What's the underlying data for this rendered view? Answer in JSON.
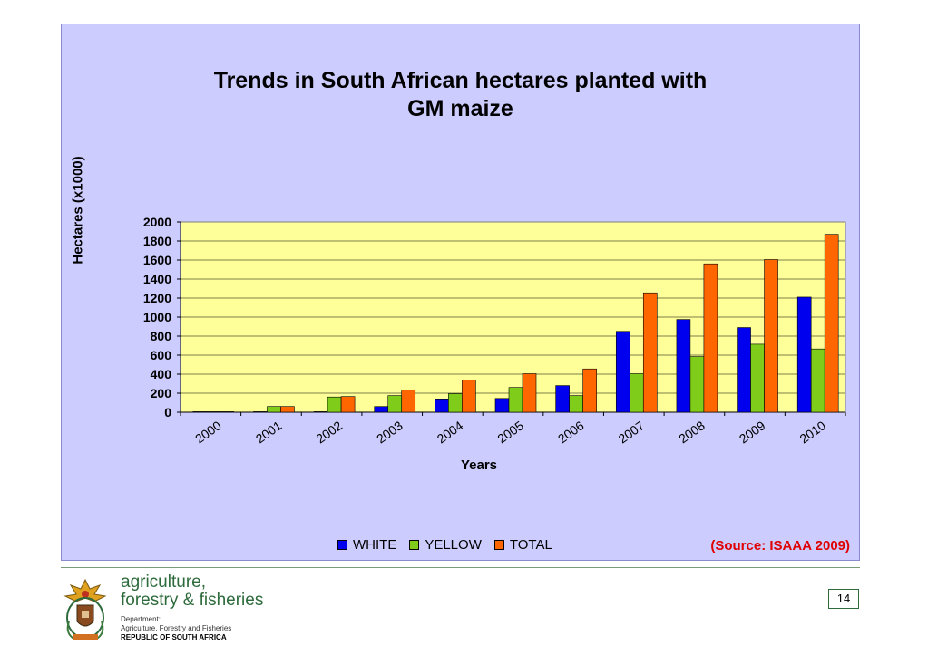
{
  "colors": {
    "panel_bg": "#ccccff",
    "plot_bg": "#ffff99",
    "white_series": "#0000ee",
    "yellow_series": "#80cc1a",
    "total_series": "#ff6600",
    "source_text": "#e00000",
    "brand_green": "#2e6b3c"
  },
  "chart_data": {
    "type": "bar",
    "title": "Trends in South African hectares planted with GM maize",
    "xlabel": "Years",
    "ylabel": "Hectares (x1000)",
    "categories": [
      "2000",
      "2001",
      "2002",
      "2003",
      "2004",
      "2005",
      "2006",
      "2007",
      "2008",
      "2009",
      "2010"
    ],
    "series": [
      {
        "name": "WHITE",
        "values": [
          0,
          0,
          5,
          60,
          140,
          145,
          280,
          850,
          975,
          890,
          1210
        ]
      },
      {
        "name": "YELLOW",
        "values": [
          0,
          60,
          160,
          175,
          195,
          260,
          175,
          405,
          585,
          715,
          665
        ]
      },
      {
        "name": "TOTAL",
        "values": [
          0,
          60,
          165,
          235,
          340,
          405,
          455,
          1255,
          1560,
          1605,
          1870
        ]
      }
    ],
    "ylim": [
      0,
      2000
    ],
    "yticks": [
      0,
      200,
      400,
      600,
      800,
      1000,
      1200,
      1400,
      1600,
      1800,
      2000
    ],
    "grid": true,
    "legend_position": "bottom"
  },
  "source_note": "(Source: ISAAA 2009)",
  "footer": {
    "brand_line1": "agriculture,",
    "brand_line2": "forestry & fisheries",
    "dept_line1": "Department:",
    "dept_line2": "Agriculture, Forestry and Fisheries",
    "dept_line3": "REPUBLIC OF SOUTH AFRICA",
    "page_number": "14"
  }
}
